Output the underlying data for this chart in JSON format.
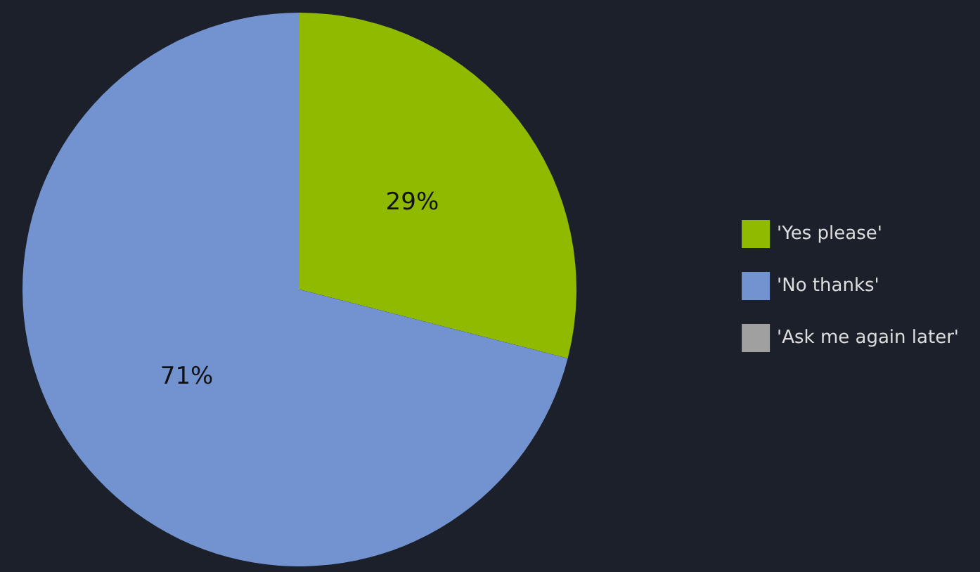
{
  "chart_data": {
    "type": "pie",
    "categories": [
      "'Yes please'",
      "'No thanks'",
      "'Ask me again later'"
    ],
    "values": [
      29,
      71,
      0
    ],
    "colors": [
      "#8fba00",
      "#7393d0",
      "#a0a0a0"
    ],
    "value_labels": [
      "29%",
      "71%",
      null
    ],
    "legend": "right"
  }
}
